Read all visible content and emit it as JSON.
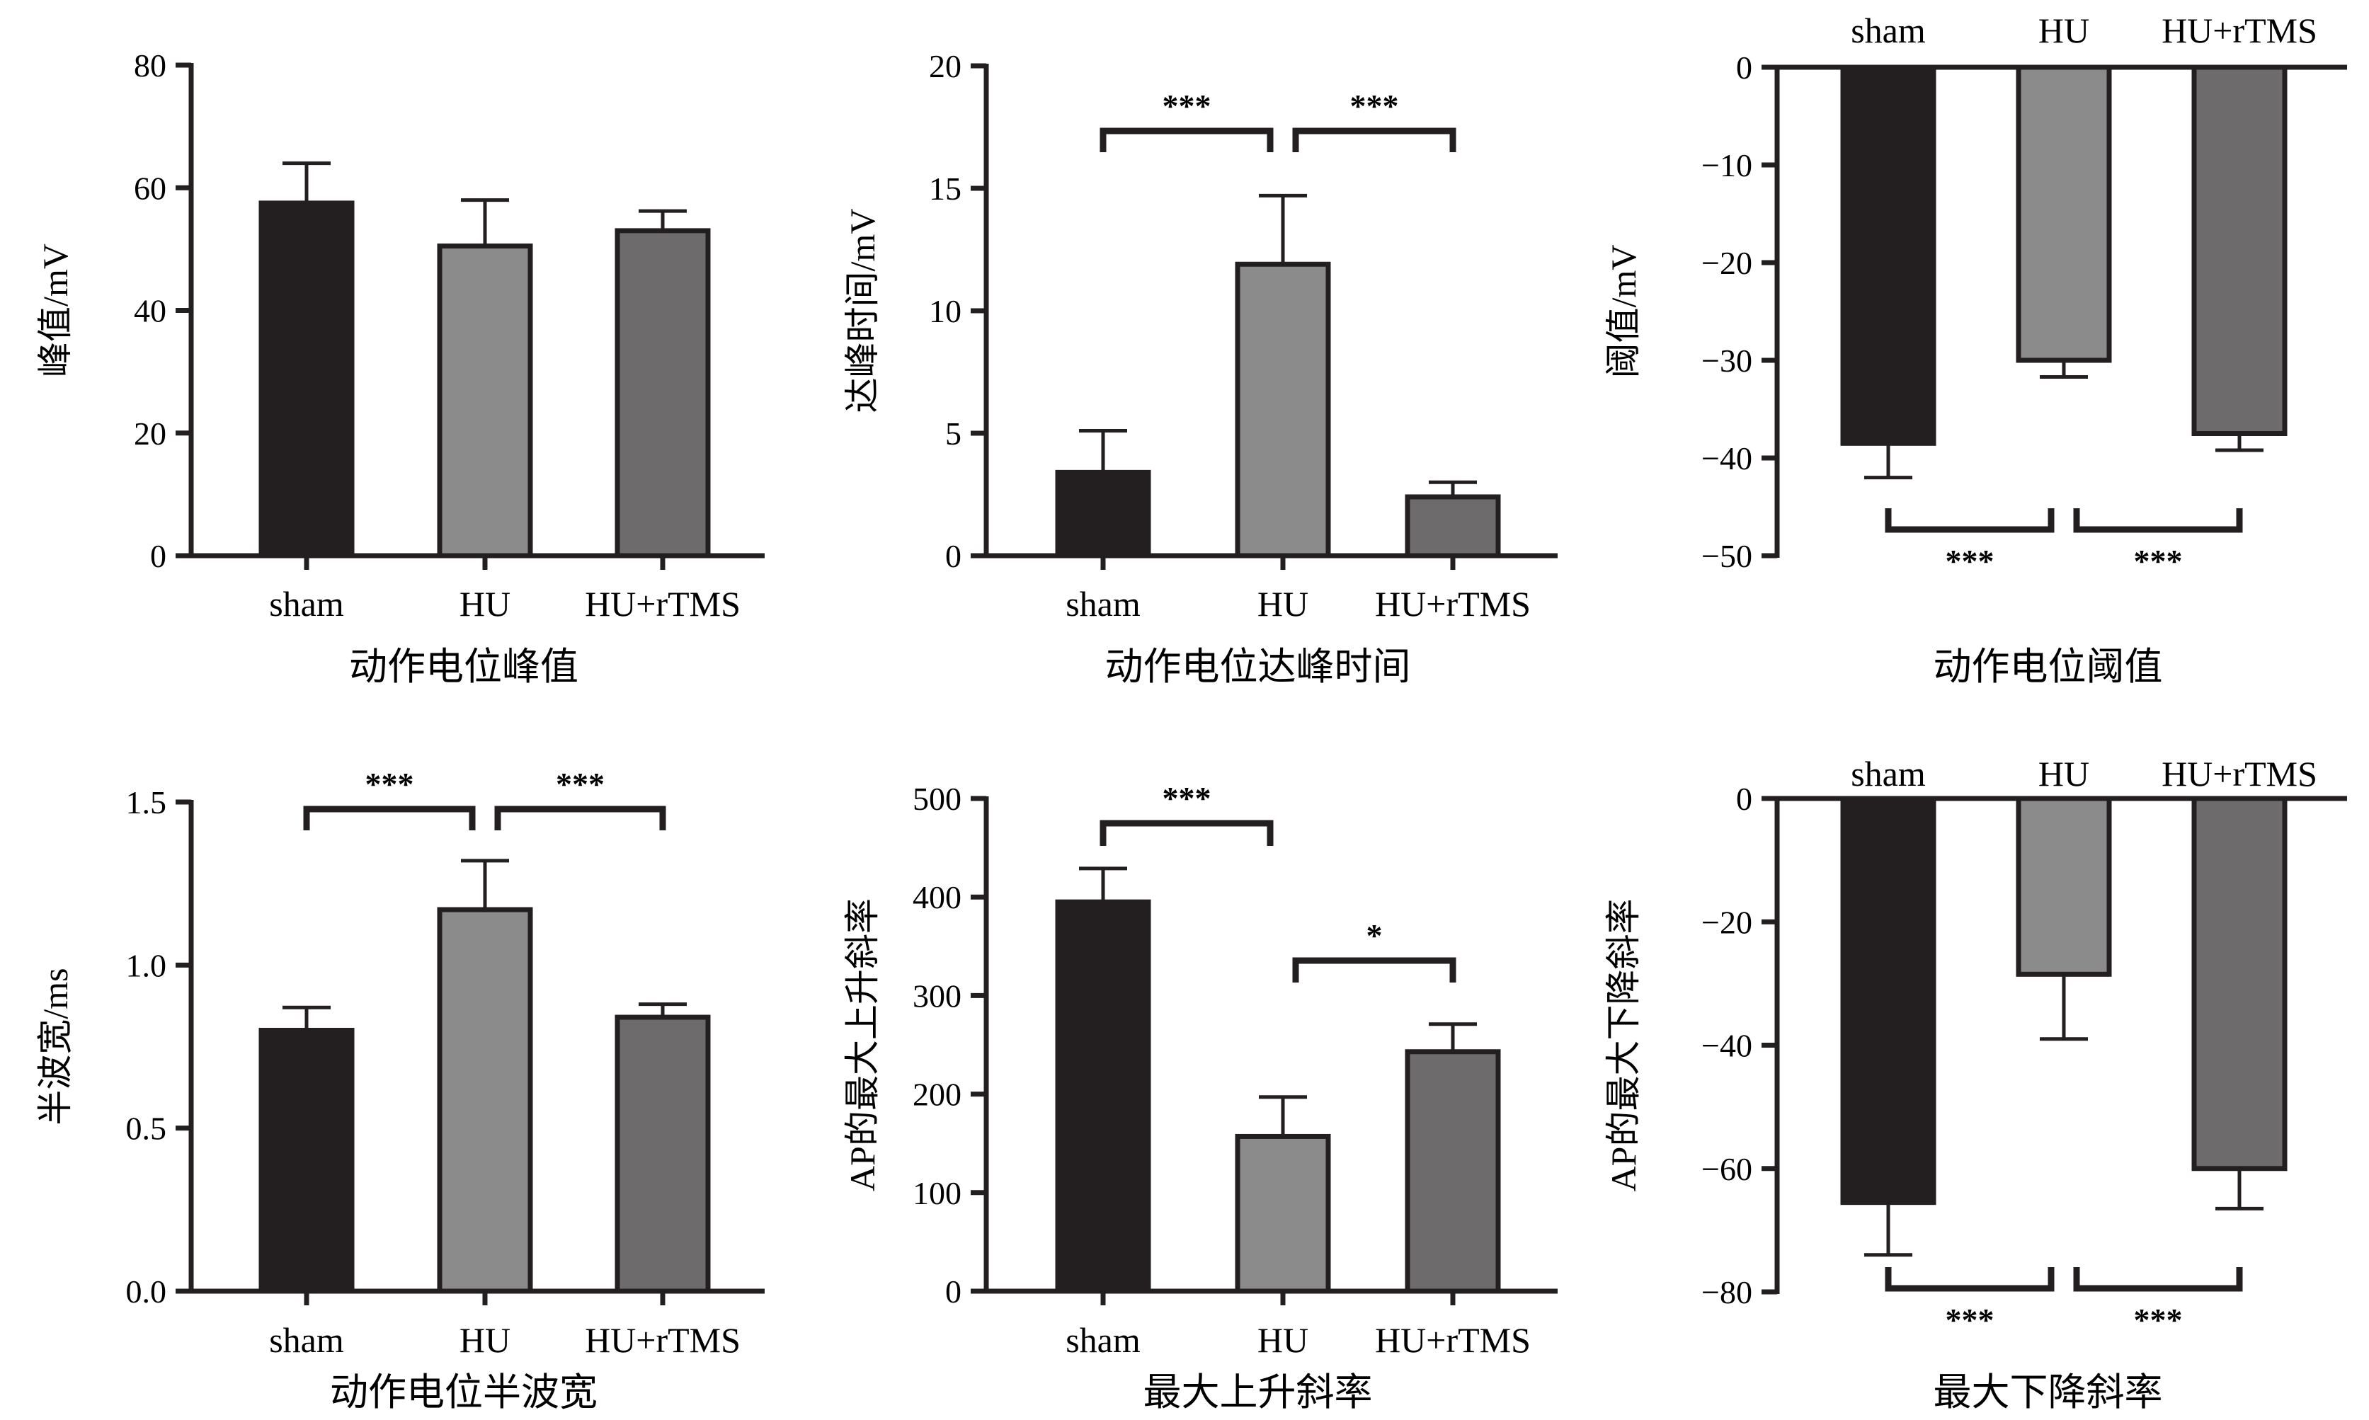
{
  "colors": {
    "sham": "#231f20",
    "HU": "#8c8b8b",
    "HU+rTMS": "#6d6b6c",
    "axis": "#231f20"
  },
  "chart_data": [
    {
      "type": "bar",
      "caption": "动作电位峰值",
      "ylabel": "峰值/mV",
      "categories": [
        "sham",
        "HU",
        "HU+rTMS"
      ],
      "values": [
        57.5,
        50.5,
        53
      ],
      "errors": [
        6.5,
        7.5,
        3.2
      ],
      "ylim": [
        0,
        80
      ],
      "yticks": [
        "0",
        "20",
        "40",
        "60",
        "80"
      ],
      "brackets": []
    },
    {
      "type": "bar",
      "caption": "动作电位达峰时间",
      "ylabel": "达峰时间/mV",
      "categories": [
        "sham",
        "HU",
        "HU+rTMS"
      ],
      "values": [
        3.4,
        11.9,
        2.4
      ],
      "errors": [
        1.7,
        2.8,
        0.6
      ],
      "ylim": [
        0,
        20
      ],
      "yticks": [
        "0",
        "5",
        "10",
        "15",
        "20"
      ],
      "brackets": [
        {
          "from": 0,
          "to": 1,
          "label": "***"
        },
        {
          "from": 1,
          "to": 2,
          "label": "***"
        }
      ]
    },
    {
      "type": "bar",
      "caption": "动作电位阈值",
      "ylabel": "阈值/mV",
      "categories": [
        "sham",
        "HU",
        "HU+rTMS"
      ],
      "values": [
        -38.5,
        -30,
        -37.5
      ],
      "errors": [
        3.5,
        1.7,
        1.7
      ],
      "ylim": [
        -50,
        0
      ],
      "yticks": [
        "0",
        "−10",
        "−20",
        "−30",
        "−40",
        "−50"
      ],
      "brackets": [
        {
          "from": 0,
          "to": 1,
          "label": "***"
        },
        {
          "from": 1,
          "to": 2,
          "label": "***"
        }
      ]
    },
    {
      "type": "bar",
      "caption": "动作电位半波宽",
      "ylabel": "半波宽/ms",
      "categories": [
        "sham",
        "HU",
        "HU+rTMS"
      ],
      "values": [
        0.8,
        1.17,
        0.84
      ],
      "errors": [
        0.07,
        0.15,
        0.04
      ],
      "ylim": [
        0,
        1.5
      ],
      "yticks": [
        "0.0",
        "0.5",
        "1.0",
        "1.5"
      ],
      "brackets": [
        {
          "from": 0,
          "to": 1,
          "label": "***"
        },
        {
          "from": 1,
          "to": 2,
          "label": "***"
        }
      ]
    },
    {
      "type": "bar",
      "caption": "最大上升斜率",
      "ylabel": "AP的最大上升斜率",
      "categories": [
        "sham",
        "HU",
        "HU+rTMS"
      ],
      "values": [
        395,
        157,
        243
      ],
      "errors": [
        34,
        40,
        28
      ],
      "ylim": [
        0,
        500
      ],
      "yticks": [
        "0",
        "100",
        "200",
        "300",
        "400",
        "500"
      ],
      "brackets": [
        {
          "from": 0,
          "to": 1,
          "label": "***"
        },
        {
          "from": 1,
          "to": 2,
          "label": "*"
        }
      ]
    },
    {
      "type": "bar",
      "caption": "最大下降斜率",
      "ylabel": "AP的最大下降斜率",
      "categories": [
        "sham",
        "HU",
        "HU+rTMS"
      ],
      "values": [
        -65.5,
        -28.5,
        -60
      ],
      "errors": [
        8.5,
        10.5,
        6.5
      ],
      "ylim": [
        -80,
        0
      ],
      "yticks": [
        "0",
        "−20",
        "−40",
        "−60",
        "−80"
      ],
      "brackets": [
        {
          "from": 0,
          "to": 1,
          "label": "***"
        },
        {
          "from": 1,
          "to": 2,
          "label": "***"
        }
      ]
    }
  ]
}
